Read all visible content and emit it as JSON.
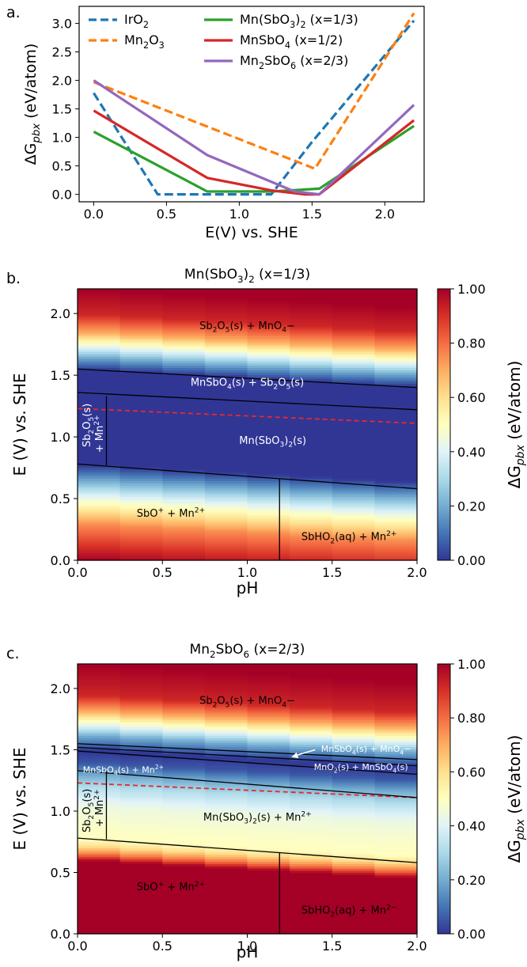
{
  "chart_data": [
    {
      "panel_label": "a.",
      "type": "line",
      "title": "",
      "xlabel": "E(V) vs. SHE",
      "ylabel": "ΔGpbx (eV/atom)",
      "xlim": [
        -0.1,
        2.27
      ],
      "ylim": [
        -0.13,
        3.3
      ],
      "x_ticks": [
        0.0,
        0.5,
        1.0,
        1.5,
        2.0
      ],
      "x_tick_labels": [
        "0.0",
        "0.5",
        "1.0",
        "1.5",
        "2.0"
      ],
      "y_ticks": [
        0.0,
        0.5,
        1.0,
        1.5,
        2.0,
        2.5,
        3.0
      ],
      "y_tick_labels": [
        "0.0",
        "0.5",
        "1.0",
        "1.5",
        "2.0",
        "2.5",
        "3.0"
      ],
      "grid": false,
      "legend_position": "top",
      "series": [
        {
          "name": "IrO2",
          "legend": [
            "IrO",
            "2",
            ""
          ],
          "color": "#1f77b4",
          "dashed": true,
          "x": [
            0.0,
            0.44,
            1.22,
            1.5,
            2.2
          ],
          "y": [
            1.78,
            0.0,
            0.0,
            0.92,
            3.05
          ]
        },
        {
          "name": "Mn2O3",
          "legend": [
            "Mn",
            "2",
            "O",
            "3",
            ""
          ],
          "color": "#ff7f0e",
          "dashed": true,
          "x": [
            0.0,
            1.52,
            2.2
          ],
          "y": [
            1.97,
            0.45,
            3.18
          ]
        },
        {
          "name": "Mn(SbO3)2 (x=1/3)",
          "legend": [
            "Mn(SbO",
            "3",
            ")",
            "2",
            " (x=1/3)"
          ],
          "color": "#2ca02c",
          "dashed": false,
          "x": [
            0.0,
            0.78,
            1.22,
            1.55,
            2.2
          ],
          "y": [
            1.1,
            0.05,
            0.05,
            0.1,
            1.2
          ]
        },
        {
          "name": "MnSbO4 (x=1/2)",
          "legend": [
            "MnSbO",
            "4",
            "    (x=1/2)"
          ],
          "color": "#d62728",
          "dashed": false,
          "x": [
            0.0,
            0.78,
            1.22,
            1.45,
            1.55,
            2.2
          ],
          "y": [
            1.47,
            0.29,
            0.07,
            0.0,
            0.0,
            1.3
          ]
        },
        {
          "name": "Mn2SbO6 (x=2/3)",
          "legend": [
            "Mn",
            "2",
            "SbO",
            "6",
            "  (x=2/3)"
          ],
          "color": "#9467bd",
          "dashed": false,
          "x": [
            0.0,
            0.78,
            1.38,
            1.55,
            2.2
          ],
          "y": [
            2.0,
            0.69,
            0.05,
            0.0,
            1.57
          ]
        }
      ]
    },
    {
      "panel_label": "b.",
      "type": "heatmap",
      "title": [
        "Mn(SbO",
        "3",
        ")",
        "2",
        " (x=1/3)"
      ],
      "xlabel": "pH",
      "ylabel": "E (V) vs. SHE",
      "xlim": [
        0.0,
        2.0
      ],
      "ylim": [
        0.0,
        2.2
      ],
      "x_ticks": [
        0.0,
        0.5,
        1.0,
        1.5,
        2.0
      ],
      "x_tick_labels": [
        "0.0",
        "0.5",
        "1.0",
        "1.5",
        "2.0"
      ],
      "y_ticks": [
        0.0,
        0.5,
        1.0,
        1.5,
        2.0
      ],
      "y_tick_labels": [
        "0.0",
        "0.5",
        "1.0",
        "1.5",
        "2.0"
      ],
      "colorbar": {
        "label": "ΔGpbx (eV/atom)",
        "range": [
          0.0,
          1.0
        ],
        "ticks": [
          0.0,
          0.2,
          0.4,
          0.6,
          0.8,
          1.0
        ],
        "tick_labels": [
          "0.00",
          "0.20",
          "0.40",
          "0.60",
          "0.80",
          "1.00"
        ]
      },
      "oer_line": {
        "color": "#e8282b",
        "dashed": true,
        "pH": [
          0.0,
          2.0
        ],
        "E": [
          1.23,
          1.11
        ]
      },
      "value_profile_E": [
        0.0,
        0.3,
        0.5,
        0.6,
        0.7,
        0.78,
        1.55,
        1.65,
        1.75,
        1.85,
        2.0,
        2.2
      ],
      "value_profile_dG": [
        1.0,
        0.75,
        0.45,
        0.28,
        0.12,
        0.0,
        0.0,
        0.2,
        0.45,
        0.7,
        0.92,
        1.0
      ],
      "boundaries": [
        {
          "pH": [
            0.0,
            2.0
          ],
          "E": [
            1.55,
            1.4
          ]
        },
        {
          "pH": [
            0.0,
            2.0
          ],
          "E": [
            1.36,
            1.22
          ]
        },
        {
          "pH": [
            0.0,
            2.0
          ],
          "E": [
            0.78,
            0.58
          ]
        },
        {
          "pH": [
            0.17,
            0.17
          ],
          "E": [
            0.77,
            1.33
          ]
        },
        {
          "pH": [
            1.19,
            1.19
          ],
          "E": [
            0.0,
            0.66
          ]
        }
      ],
      "regions": [
        {
          "parts": [
            "Sb",
            "2",
            "O",
            "5",
            "(s) + MnO",
            "4",
            "−"
          ],
          "pH": 1.0,
          "E": 1.9,
          "color": "#000000"
        },
        {
          "parts": [
            "MnSbO",
            "4",
            "(s) + Sb",
            "2",
            "O",
            "5",
            "(s)"
          ],
          "pH": 1.0,
          "E": 1.44,
          "color": "#ffffff"
        },
        {
          "parts": [
            "Mn(SbO",
            "3",
            ")",
            "2",
            "(s)"
          ],
          "pH": 1.15,
          "E": 0.97,
          "color": "#ffffff"
        },
        {
          "parts": [
            "Sb",
            "2",
            "O",
            "5",
            "(s)"
          ],
          "pH": 0.075,
          "E": 1.12,
          "color": "#ffffff",
          "rotate": -90
        },
        {
          "parts": [
            "+ Mn",
            "2+",
            ""
          ],
          "pH": 0.15,
          "E": 1.05,
          "color": "#ffffff",
          "rotate": -90
        },
        {
          "parts": [
            "SbO",
            "+",
            " + Mn",
            "2+",
            ""
          ],
          "pH": 0.55,
          "E": 0.38,
          "color": "#000000"
        },
        {
          "parts": [
            "SbHO",
            "2",
            "(aq) + Mn",
            "2+",
            ""
          ],
          "pH": 1.6,
          "E": 0.19,
          "color": "#000000"
        }
      ]
    },
    {
      "panel_label": "c.",
      "type": "heatmap",
      "title": [
        "Mn",
        "2",
        "SbO",
        "6",
        " (x=2/3)"
      ],
      "xlabel": "pH",
      "ylabel": "E (V) vs. SHE",
      "xlim": [
        0.0,
        2.0
      ],
      "ylim": [
        0.0,
        2.2
      ],
      "x_ticks": [
        0.0,
        0.5,
        1.0,
        1.5,
        2.0
      ],
      "x_tick_labels": [
        "0.0",
        "0.5",
        "1.0",
        "1.5",
        "2.0"
      ],
      "y_ticks": [
        0.0,
        0.5,
        1.0,
        1.5,
        2.0
      ],
      "y_tick_labels": [
        "0.0",
        "0.5",
        "1.0",
        "1.5",
        "2.0"
      ],
      "colorbar": {
        "label": "ΔGpbx (eV/atom)",
        "range": [
          0.0,
          1.0
        ],
        "ticks": [
          0.0,
          0.2,
          0.4,
          0.6,
          0.8,
          1.0
        ],
        "tick_labels": [
          "0.00",
          "0.20",
          "0.40",
          "0.60",
          "0.80",
          "1.00"
        ]
      },
      "oer_line": {
        "color": "#e8282b",
        "dashed": true,
        "pH": [
          0.0,
          2.0
        ],
        "E": [
          1.23,
          1.11
        ]
      },
      "value_profile_E": [
        0.0,
        0.6,
        0.65,
        0.72,
        0.78,
        0.9,
        1.05,
        1.2,
        1.3,
        1.4,
        1.5,
        1.62,
        1.72,
        1.82,
        1.95,
        2.2
      ],
      "value_profile_dG": [
        1.0,
        1.0,
        0.8,
        0.6,
        0.5,
        0.48,
        0.44,
        0.32,
        0.2,
        0.05,
        0.0,
        0.2,
        0.45,
        0.7,
        0.92,
        1.0
      ],
      "boundaries": [
        {
          "pH": [
            0.0,
            2.0
          ],
          "E": [
            1.55,
            1.42
          ]
        },
        {
          "pH": [
            0.0,
            2.0
          ],
          "E": [
            1.52,
            1.37
          ]
        },
        {
          "pH": [
            0.0,
            2.0
          ],
          "E": [
            1.49,
            1.3
          ]
        },
        {
          "pH": [
            0.0,
            2.0
          ],
          "E": [
            1.33,
            1.11
          ]
        },
        {
          "pH": [
            0.0,
            2.0
          ],
          "E": [
            0.78,
            0.58
          ]
        },
        {
          "pH": [
            0.17,
            0.17
          ],
          "E": [
            0.77,
            1.33
          ]
        },
        {
          "pH": [
            1.19,
            1.19
          ],
          "E": [
            0.0,
            0.66
          ]
        }
      ],
      "arrow": {
        "from_pH": 1.4,
        "from_E": 1.5,
        "to_pH": 1.26,
        "to_E": 1.44,
        "color": "#ffffff"
      },
      "regions": [
        {
          "parts": [
            "Sb",
            "2",
            "O",
            "5",
            "(s) + MnO",
            "4",
            "−"
          ],
          "pH": 1.0,
          "E": 1.9,
          "color": "#000000"
        },
        {
          "parts": [
            "MnSbO",
            "4",
            "(s) + MnO",
            "4",
            "−"
          ],
          "pH": 1.7,
          "E": 1.51,
          "color": "#ffffff",
          "size": 11
        },
        {
          "parts": [
            "MnO",
            "2",
            "(s) + MnSbO",
            "4",
            "(s)"
          ],
          "pH": 1.67,
          "E": 1.36,
          "color": "#ffffff",
          "size": 11
        },
        {
          "parts": [
            "MnSbO",
            "4",
            "(s) + Mn",
            "2+",
            ""
          ],
          "pH": 0.27,
          "E": 1.34,
          "color": "#ffffff",
          "size": 11
        },
        {
          "parts": [
            "Mn(SbO",
            "3",
            ")",
            "2",
            "(s) + Mn",
            "2+",
            ""
          ],
          "pH": 1.06,
          "E": 0.95,
          "color": "#000000"
        },
        {
          "parts": [
            "Sb",
            "2",
            "O",
            "5",
            "(s)"
          ],
          "pH": 0.075,
          "E": 1.03,
          "color": "#000000",
          "rotate": -90
        },
        {
          "parts": [
            "+ Mn",
            "2+",
            ""
          ],
          "pH": 0.15,
          "E": 1.05,
          "color": "#000000",
          "rotate": -90
        },
        {
          "parts": [
            "SbO",
            "+",
            " + Mn",
            "2+",
            ""
          ],
          "pH": 0.55,
          "E": 0.38,
          "color": "#000000"
        },
        {
          "parts": [
            "SbHO",
            "2",
            "(aq) + Mn",
            "2−",
            ""
          ],
          "pH": 1.6,
          "E": 0.19,
          "color": "#000000"
        }
      ]
    }
  ]
}
